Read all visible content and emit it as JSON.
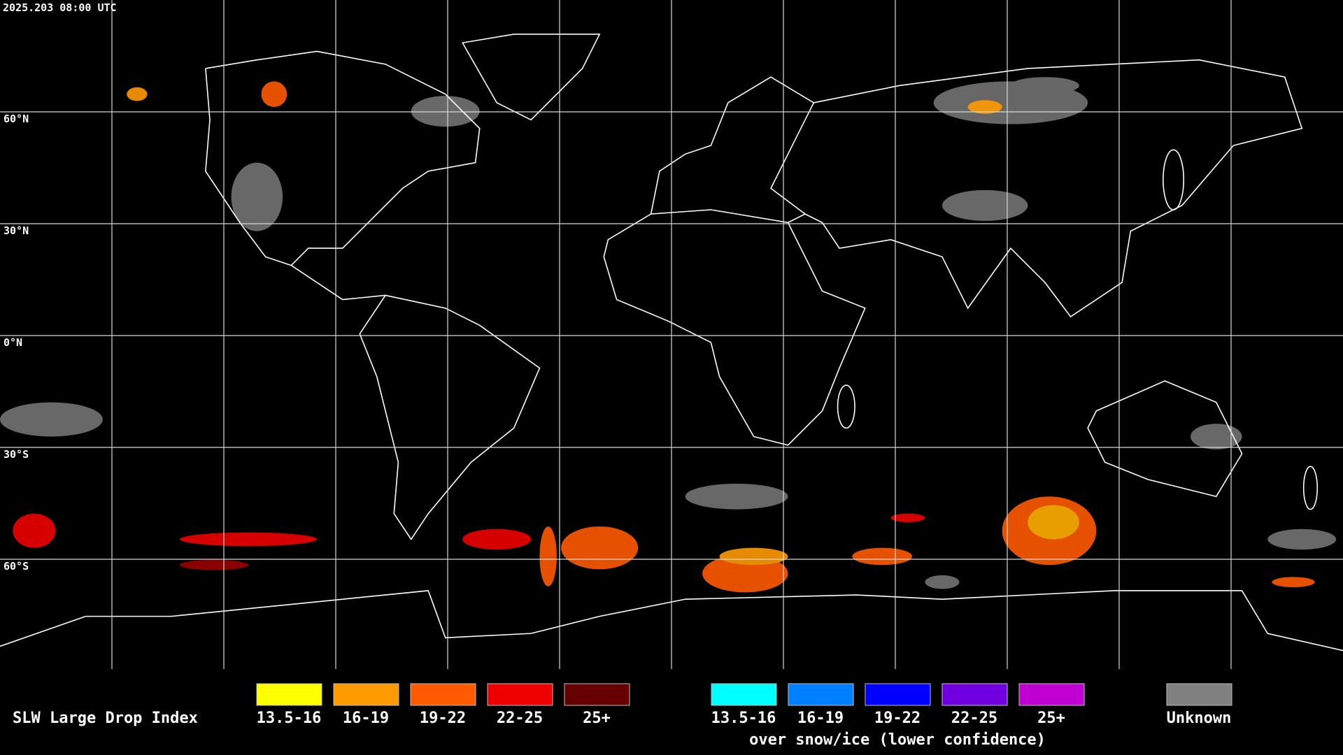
{
  "header": {
    "timestamp": "2025.203 08:00 UTC"
  },
  "map": {
    "lat_labels": [
      "60°N",
      "30°N",
      "0°N",
      "30°S",
      "60°S"
    ]
  },
  "legend": {
    "title": "SLW Large Drop Index",
    "items": [
      {
        "label": "13.5-16",
        "color": "#ffff00"
      },
      {
        "label": "16-19",
        "color": "#ff9a00"
      },
      {
        "label": "19-22",
        "color": "#ff5a00"
      },
      {
        "label": "22-25",
        "color": "#ee0000"
      },
      {
        "label": "25+",
        "color": "#660000"
      }
    ],
    "snow_items": [
      {
        "label": "13.5-16",
        "color": "#00ffff"
      },
      {
        "label": "16-19",
        "color": "#0080ff"
      },
      {
        "label": "19-22",
        "color": "#0000ff"
      },
      {
        "label": "22-25",
        "color": "#7000e0"
      },
      {
        "label": "25+",
        "color": "#c000d0"
      }
    ],
    "snow_caption": "over snow/ice (lower confidence)",
    "unknown": {
      "label": "Unknown",
      "color": "#808080"
    }
  }
}
